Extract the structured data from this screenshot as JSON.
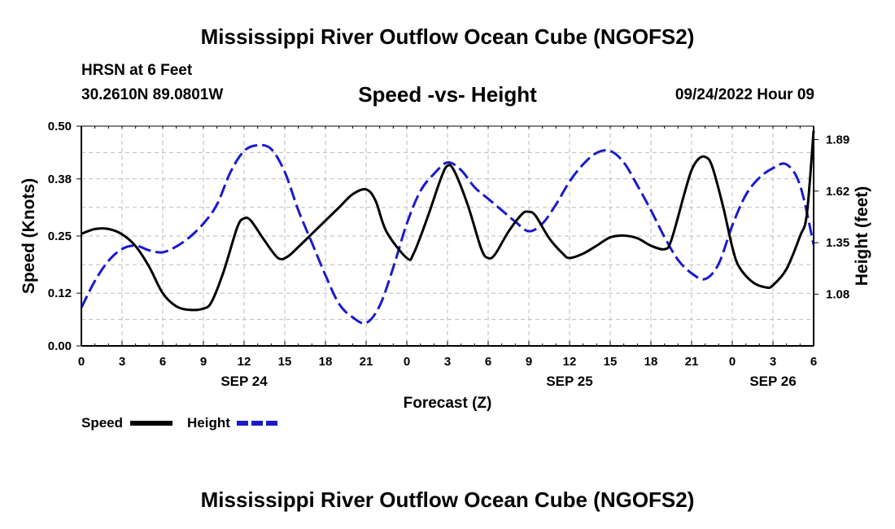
{
  "header": {
    "title_top": "Mississippi River Outflow Ocean Cube (NGOFS2)",
    "station_name": "HRSN at 6 Feet",
    "station_coords": "30.2610N  89.0801W",
    "chart_title": "Speed -vs- Height",
    "date": "09/24/2022 Hour 09",
    "title_bottom": "Mississippi River Outflow Ocean Cube (NGOFS2)"
  },
  "colors": {
    "speed": "#000000",
    "height": "#1a1acc",
    "grid": "#bbbbbb"
  },
  "chart_data": {
    "type": "line",
    "title": "Speed -vs- Height",
    "xlabel": "Forecast (Z)",
    "ylabel_left": "Speed (Knots)",
    "ylabel_right": "Height (feet)",
    "xlim": [
      0,
      54
    ],
    "ylim_left": [
      0.0,
      0.5
    ],
    "ylim_right": [
      0.81,
      1.96
    ],
    "x_tick_labels": [
      "0",
      "3",
      "6",
      "9",
      "12",
      "15",
      "18",
      "21",
      "0",
      "3",
      "6",
      "9",
      "12",
      "15",
      "18",
      "21",
      "0",
      "3",
      "6"
    ],
    "y_left_ticks": [
      "0.00",
      "0.12",
      "0.25",
      "0.38",
      "0.50"
    ],
    "y_right_ticks": [
      "1.08",
      "1.35",
      "1.62",
      "1.89"
    ],
    "date_labels": [
      {
        "hour": 12,
        "label": "SEP 24"
      },
      {
        "hour": 36,
        "label": "SEP 25"
      },
      {
        "hour": 51,
        "label": "SEP 26"
      }
    ],
    "grid": true,
    "legend_position": "bottom-left",
    "series": [
      {
        "name": "Speed",
        "axis": "left",
        "style": "solid",
        "points": [
          [
            0,
            0.255
          ],
          [
            1,
            0.266
          ],
          [
            2,
            0.266
          ],
          [
            3,
            0.254
          ],
          [
            4,
            0.227
          ],
          [
            5,
            0.18
          ],
          [
            6,
            0.12
          ],
          [
            7,
            0.09
          ],
          [
            8,
            0.082
          ],
          [
            9,
            0.085
          ],
          [
            9.6,
            0.1
          ],
          [
            10.5,
            0.17
          ],
          [
            11.5,
            0.27
          ],
          [
            12,
            0.29
          ],
          [
            12.5,
            0.285
          ],
          [
            13.5,
            0.24
          ],
          [
            14.5,
            0.2
          ],
          [
            15.2,
            0.203
          ],
          [
            16,
            0.225
          ],
          [
            17,
            0.255
          ],
          [
            18,
            0.285
          ],
          [
            19,
            0.315
          ],
          [
            20,
            0.345
          ],
          [
            21,
            0.356
          ],
          [
            21.7,
            0.33
          ],
          [
            22.5,
            0.26
          ],
          [
            24,
            0.2
          ],
          [
            24.5,
            0.21
          ],
          [
            25.5,
            0.29
          ],
          [
            26.5,
            0.38
          ],
          [
            27,
            0.41
          ],
          [
            27.5,
            0.398
          ],
          [
            28.5,
            0.32
          ],
          [
            29.5,
            0.22
          ],
          [
            30,
            0.2
          ],
          [
            30.5,
            0.208
          ],
          [
            31.5,
            0.26
          ],
          [
            32.5,
            0.3
          ],
          [
            33,
            0.305
          ],
          [
            33.5,
            0.296
          ],
          [
            34.5,
            0.245
          ],
          [
            35.5,
            0.21
          ],
          [
            36,
            0.2
          ],
          [
            37,
            0.21
          ],
          [
            38,
            0.228
          ],
          [
            39,
            0.247
          ],
          [
            40,
            0.251
          ],
          [
            41,
            0.245
          ],
          [
            42,
            0.228
          ],
          [
            43,
            0.22
          ],
          [
            43.5,
            0.24
          ],
          [
            44.5,
            0.35
          ],
          [
            45,
            0.4
          ],
          [
            45.5,
            0.425
          ],
          [
            46,
            0.43
          ],
          [
            46.5,
            0.41
          ],
          [
            47.3,
            0.32
          ],
          [
            48,
            0.225
          ],
          [
            48.5,
            0.18
          ],
          [
            49.5,
            0.145
          ],
          [
            50.5,
            0.133
          ],
          [
            51,
            0.138
          ],
          [
            52,
            0.175
          ],
          [
            53,
            0.25
          ],
          [
            53.5,
            0.3
          ],
          [
            54,
            0.49
          ]
        ]
      },
      {
        "name": "Height",
        "axis": "right",
        "style": "dashed",
        "points": [
          [
            0,
            1.01
          ],
          [
            1,
            1.15
          ],
          [
            2,
            1.255
          ],
          [
            3,
            1.317
          ],
          [
            4,
            1.335
          ],
          [
            5,
            1.31
          ],
          [
            6,
            1.3
          ],
          [
            7,
            1.33
          ],
          [
            8,
            1.38
          ],
          [
            9,
            1.45
          ],
          [
            10,
            1.55
          ],
          [
            11,
            1.72
          ],
          [
            12,
            1.83
          ],
          [
            13,
            1.86
          ],
          [
            14,
            1.84
          ],
          [
            15,
            1.72
          ],
          [
            16,
            1.52
          ],
          [
            17,
            1.35
          ],
          [
            18,
            1.18
          ],
          [
            19,
            1.03
          ],
          [
            20,
            0.96
          ],
          [
            21,
            0.93
          ],
          [
            22,
            1.02
          ],
          [
            23,
            1.22
          ],
          [
            24,
            1.45
          ],
          [
            25,
            1.62
          ],
          [
            26,
            1.71
          ],
          [
            27,
            1.77
          ],
          [
            28,
            1.73
          ],
          [
            29,
            1.64
          ],
          [
            30,
            1.58
          ],
          [
            31,
            1.52
          ],
          [
            32,
            1.46
          ],
          [
            33,
            1.41
          ],
          [
            34,
            1.45
          ],
          [
            35,
            1.55
          ],
          [
            36,
            1.67
          ],
          [
            37,
            1.76
          ],
          [
            38,
            1.82
          ],
          [
            39,
            1.83
          ],
          [
            40,
            1.77
          ],
          [
            41,
            1.65
          ],
          [
            42,
            1.52
          ],
          [
            43,
            1.38
          ],
          [
            44,
            1.26
          ],
          [
            45,
            1.19
          ],
          [
            46,
            1.16
          ],
          [
            47,
            1.24
          ],
          [
            48,
            1.44
          ],
          [
            49,
            1.6
          ],
          [
            50,
            1.69
          ],
          [
            51,
            1.74
          ],
          [
            52,
            1.76
          ],
          [
            53,
            1.65
          ],
          [
            54,
            1.34
          ]
        ]
      }
    ]
  }
}
